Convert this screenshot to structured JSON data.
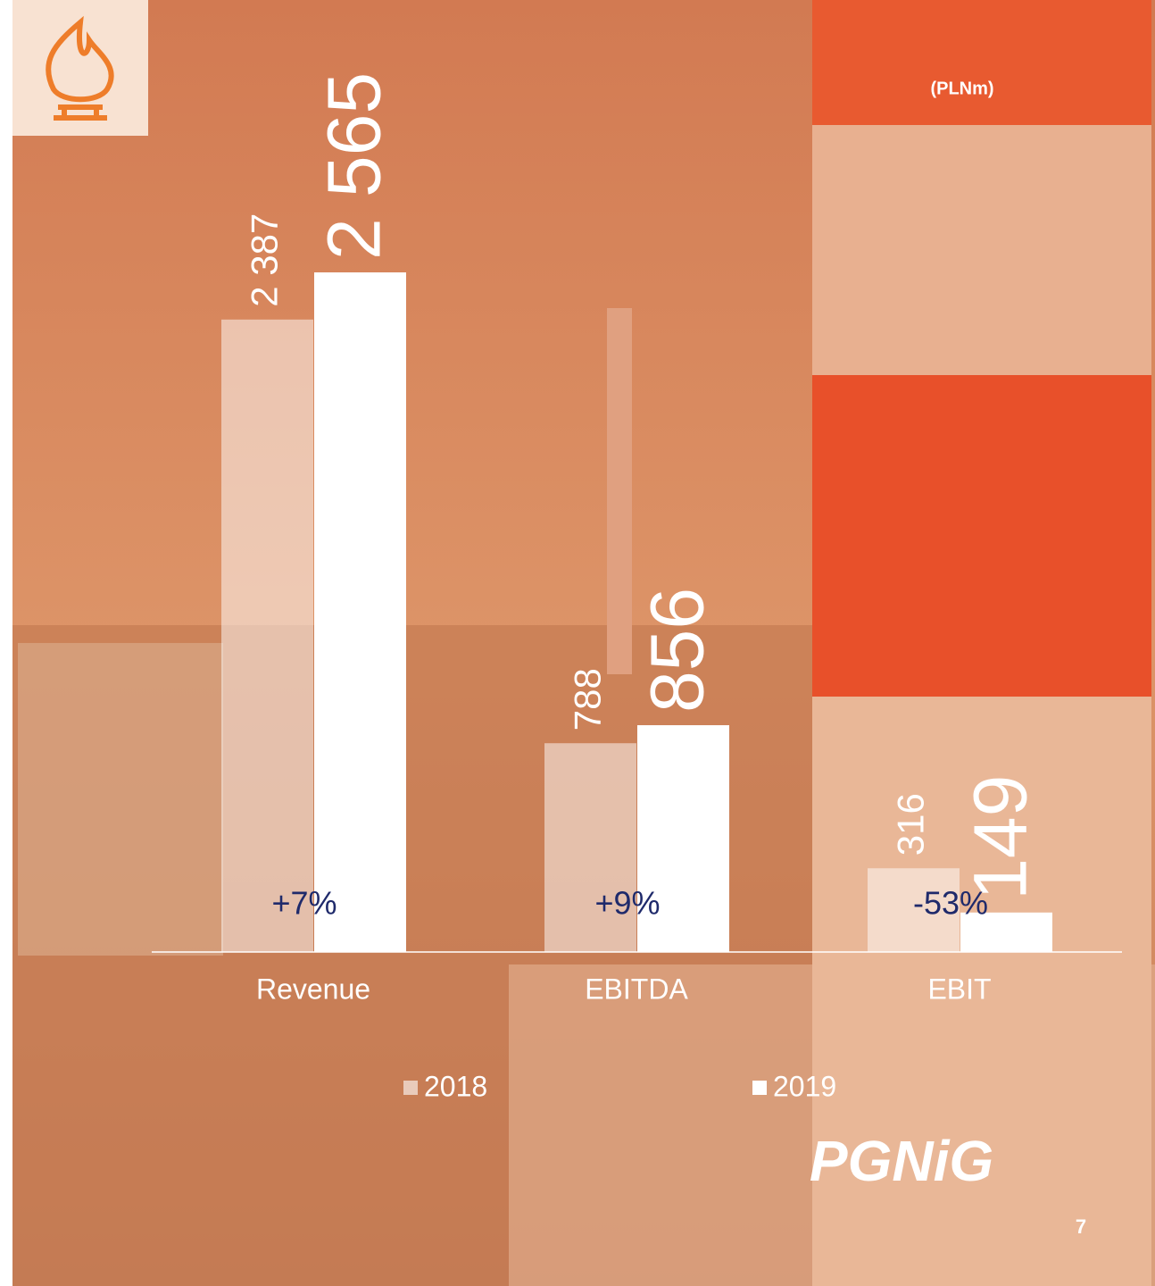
{
  "chart_data": {
    "type": "bar",
    "unit": "(PLNm)",
    "categories": [
      "Revenue",
      "EBITDA",
      "EBIT"
    ],
    "series": [
      {
        "name": "2018",
        "color": "#ffffff",
        "values": [
          2387,
          788,
          316
        ],
        "value_labels": [
          "2 387",
          "788",
          "316"
        ]
      },
      {
        "name": "2019",
        "color": "#ffffff",
        "values": [
          2565,
          856,
          149
        ],
        "value_labels": [
          "2 565",
          "856",
          "149"
        ]
      }
    ],
    "annotations": [
      "+7%",
      "+9%",
      "-53%"
    ],
    "logo": "PGNiG",
    "page_number": "7"
  }
}
